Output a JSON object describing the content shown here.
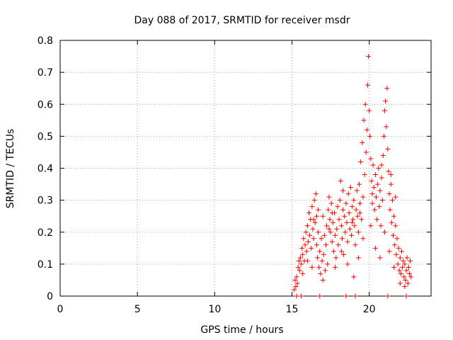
{
  "chart_data": {
    "type": "scatter",
    "title": "Day 088 of 2017, SRMTID for receiver msdr",
    "xlabel": "GPS time / hours",
    "ylabel": "SRMTID / TECUs",
    "xlim": [
      0,
      24
    ],
    "ylim": [
      0,
      0.8
    ],
    "xticks": [
      0,
      5,
      10,
      15,
      20
    ],
    "yticks": [
      0,
      0.1,
      0.2,
      0.3,
      0.4,
      0.5,
      0.6,
      0.7,
      0.8
    ],
    "xtick_labels": [
      "0",
      "5",
      "10",
      "15",
      "20"
    ],
    "ytick_labels": [
      "0",
      "0.1",
      "0.2",
      "0.3",
      "0.4",
      "0.5",
      "0.6",
      "0.7",
      "0.8"
    ],
    "grid": true,
    "marker": "+",
    "color": "#ff0000",
    "series": [
      {
        "name": "msdr",
        "points": [
          [
            15.15,
            0.02
          ],
          [
            15.2,
            0.05
          ],
          [
            15.25,
            0.03
          ],
          [
            15.3,
            0.06
          ],
          [
            15.35,
            0.04
          ],
          [
            15.4,
            0.09
          ],
          [
            15.45,
            0.11
          ],
          [
            15.5,
            0.08
          ],
          [
            15.55,
            0.12
          ],
          [
            15.6,
            0.1
          ],
          [
            15.65,
            0.15
          ],
          [
            15.7,
            0.13
          ],
          [
            15.75,
            0.18
          ],
          [
            15.8,
            0.11
          ],
          [
            15.85,
            0.16
          ],
          [
            15.9,
            0.2
          ],
          [
            15.95,
            0.14
          ],
          [
            16.0,
            0.22
          ],
          [
            16.05,
            0.17
          ],
          [
            16.1,
            0.26
          ],
          [
            16.15,
            0.19
          ],
          [
            16.2,
            0.24
          ],
          [
            16.25,
            0.15
          ],
          [
            16.3,
            0.28
          ],
          [
            16.35,
            0.21
          ],
          [
            16.4,
            0.18
          ],
          [
            16.45,
            0.3
          ],
          [
            16.5,
            0.23
          ],
          [
            16.55,
            0.32
          ],
          [
            16.6,
            0.16
          ],
          [
            16.65,
            0.12
          ],
          [
            16.7,
            0.2
          ],
          [
            16.75,
            0.09
          ],
          [
            16.8,
            0.14
          ],
          [
            16.85,
            0.07
          ],
          [
            16.9,
            0.18
          ],
          [
            16.95,
            0.11
          ],
          [
            17.0,
            0.25
          ],
          [
            17.05,
            0.13
          ],
          [
            17.1,
            0.19
          ],
          [
            17.15,
            0.08
          ],
          [
            17.2,
            0.16
          ],
          [
            17.25,
            0.22
          ],
          [
            17.3,
            0.1
          ],
          [
            17.35,
            0.27
          ],
          [
            17.4,
            0.31
          ],
          [
            17.45,
            0.24
          ],
          [
            17.5,
            0.2
          ],
          [
            17.55,
            0.29
          ],
          [
            17.6,
            0.17
          ],
          [
            17.65,
            0.23
          ],
          [
            17.7,
            0.14
          ],
          [
            17.75,
            0.26
          ],
          [
            17.8,
            0.19
          ],
          [
            17.85,
            0.12
          ],
          [
            17.9,
            0.21
          ],
          [
            17.95,
            0.28
          ],
          [
            18.0,
            0.16
          ],
          [
            18.05,
            0.24
          ],
          [
            18.1,
            0.3
          ],
          [
            18.15,
            0.36
          ],
          [
            18.2,
            0.22
          ],
          [
            18.25,
            0.18
          ],
          [
            18.3,
            0.27
          ],
          [
            18.35,
            0.13
          ],
          [
            18.4,
            0.25
          ],
          [
            18.45,
            0.2
          ],
          [
            18.5,
            0.29
          ],
          [
            18.55,
            0.23
          ],
          [
            18.6,
            0.17
          ],
          [
            18.65,
            0.32
          ],
          [
            18.7,
            0.26
          ],
          [
            18.75,
            0.21
          ],
          [
            18.8,
            0.34
          ],
          [
            18.85,
            0.19
          ],
          [
            18.9,
            0.28
          ],
          [
            18.95,
            0.24
          ],
          [
            19.0,
            0.3
          ],
          [
            19.05,
            0.22
          ],
          [
            19.1,
            0.16
          ],
          [
            19.15,
            0.27
          ],
          [
            19.2,
            0.33
          ],
          [
            19.25,
            0.25
          ],
          [
            19.3,
            0.2
          ],
          [
            19.35,
            0.35
          ],
          [
            19.4,
            0.29
          ],
          [
            19.45,
            0.42
          ],
          [
            19.5,
            0.24
          ],
          [
            19.55,
            0.48
          ],
          [
            19.6,
            0.31
          ],
          [
            19.65,
            0.55
          ],
          [
            19.7,
            0.38
          ],
          [
            19.75,
            0.6
          ],
          [
            19.8,
            0.45
          ],
          [
            19.85,
            0.52
          ],
          [
            19.9,
            0.66
          ],
          [
            19.95,
            0.75
          ],
          [
            20.0,
            0.58
          ],
          [
            20.05,
            0.5
          ],
          [
            20.1,
            0.43
          ],
          [
            20.15,
            0.36
          ],
          [
            20.2,
            0.29
          ],
          [
            20.25,
            0.41
          ],
          [
            20.3,
            0.34
          ],
          [
            20.35,
            0.27
          ],
          [
            20.4,
            0.38
          ],
          [
            20.45,
            0.31
          ],
          [
            20.5,
            0.24
          ],
          [
            20.55,
            0.35
          ],
          [
            20.6,
            0.4
          ],
          [
            20.65,
            0.28
          ],
          [
            20.7,
            0.33
          ],
          [
            20.75,
            0.22
          ],
          [
            20.8,
            0.37
          ],
          [
            20.85,
            0.3
          ],
          [
            20.9,
            0.44
          ],
          [
            20.95,
            0.5
          ],
          [
            21.0,
            0.58
          ],
          [
            21.05,
            0.61
          ],
          [
            21.1,
            0.53
          ],
          [
            21.15,
            0.65
          ],
          [
            21.2,
            0.46
          ],
          [
            21.25,
            0.39
          ],
          [
            21.3,
            0.32
          ],
          [
            21.35,
            0.27
          ],
          [
            21.4,
            0.35
          ],
          [
            21.45,
            0.23
          ],
          [
            21.5,
            0.3
          ],
          [
            21.55,
            0.19
          ],
          [
            21.6,
            0.25
          ],
          [
            21.65,
            0.16
          ],
          [
            21.7,
            0.22
          ],
          [
            21.75,
            0.13
          ],
          [
            21.8,
            0.18
          ],
          [
            21.85,
            0.1
          ],
          [
            21.9,
            0.15
          ],
          [
            21.95,
            0.08
          ],
          [
            22.0,
            0.12
          ],
          [
            22.05,
            0.07
          ],
          [
            22.1,
            0.14
          ],
          [
            22.15,
            0.09
          ],
          [
            22.2,
            0.11
          ],
          [
            22.25,
            0.06
          ],
          [
            22.3,
            0.1
          ],
          [
            22.35,
            0.05
          ],
          [
            22.4,
            0.08
          ],
          [
            22.45,
            0.12
          ],
          [
            22.5,
            0.04
          ],
          [
            22.55,
            0.09
          ],
          [
            22.6,
            0.07
          ],
          [
            22.65,
            0.11
          ],
          [
            22.7,
            0.06
          ],
          [
            15.3,
            0.0
          ],
          [
            15.6,
            0.0
          ],
          [
            16.8,
            0.0
          ],
          [
            18.5,
            0.0
          ],
          [
            19.1,
            0.0
          ],
          [
            21.2,
            0.0
          ],
          [
            22.4,
            0.0
          ],
          [
            15.7,
            0.07
          ],
          [
            16.0,
            0.11
          ],
          [
            16.3,
            0.09
          ],
          [
            16.6,
            0.25
          ],
          [
            17.0,
            0.05
          ],
          [
            17.4,
            0.21
          ],
          [
            17.8,
            0.09
          ],
          [
            18.2,
            0.14
          ],
          [
            18.6,
            0.1
          ],
          [
            19.0,
            0.06
          ],
          [
            19.3,
            0.12
          ],
          [
            19.6,
            0.18
          ],
          [
            20.1,
            0.22
          ],
          [
            20.4,
            0.15
          ],
          [
            20.7,
            0.12
          ],
          [
            21.0,
            0.2
          ],
          [
            21.3,
            0.14
          ],
          [
            21.6,
            0.09
          ],
          [
            22.0,
            0.04
          ],
          [
            22.3,
            0.03
          ],
          [
            16.4,
            0.24
          ],
          [
            16.7,
            0.27
          ],
          [
            17.6,
            0.26
          ],
          [
            18.3,
            0.33
          ],
          [
            18.9,
            0.23
          ],
          [
            19.4,
            0.26
          ],
          [
            20.2,
            0.32
          ],
          [
            20.8,
            0.41
          ],
          [
            21.4,
            0.38
          ],
          [
            21.7,
            0.31
          ]
        ]
      }
    ]
  }
}
